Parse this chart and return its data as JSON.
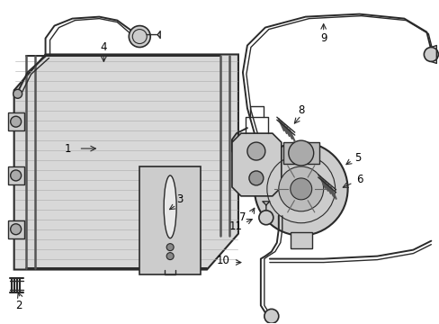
{
  "background_color": "#ffffff",
  "line_color": "#2a2a2a",
  "fill_condenser": "#d4d4d4",
  "fill_light": "#eeeeee",
  "fig_width": 4.89,
  "fig_height": 3.6,
  "dpi": 100
}
